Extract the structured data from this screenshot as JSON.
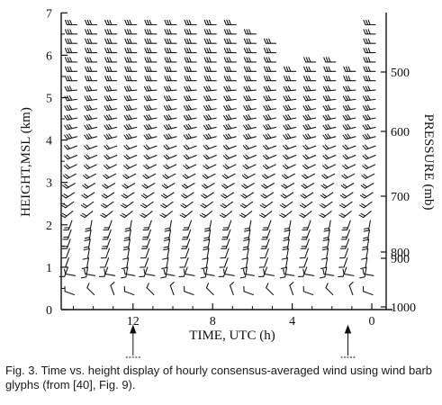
{
  "figure": {
    "y_axis_label": "HEIGHT,MSL (km)",
    "y_ticks": [
      "0",
      "1",
      "2",
      "3",
      "4",
      "5",
      "6",
      "7"
    ],
    "x_axis_label": "TIME, UTC (h)",
    "x_ticks": [
      "12",
      "8",
      "4",
      "0"
    ],
    "pressure_ticks": [
      "500",
      "600",
      "700",
      "800",
      "900",
      "1000"
    ],
    "right_axis_label": "PRESSURE (mb)"
  },
  "chart_data": {
    "type": "wind-barb time-height",
    "xlim": [
      16,
      0
    ],
    "ylim_km": [
      0,
      7
    ],
    "pressure_mb_ticks": [
      500,
      600,
      700,
      800,
      900,
      1000
    ],
    "columns_utc_h": [
      15,
      14,
      13,
      12,
      11,
      10,
      9,
      8,
      7,
      6,
      5,
      4,
      3,
      2,
      1,
      0
    ],
    "column_tops_km": [
      6.9,
      6.9,
      6.9,
      6.9,
      6.9,
      6.9,
      6.9,
      6.9,
      6.9,
      6.6,
      6.3,
      5.8,
      6.0,
      5.9,
      5.7,
      6.9
    ],
    "markers_utc_h": [
      12,
      1.2
    ]
  },
  "caption": {
    "text": "Fig. 3. Time vs. height display of hourly consensus-averaged wind using wind barb glyphs (from [40], Fig. 9)."
  }
}
